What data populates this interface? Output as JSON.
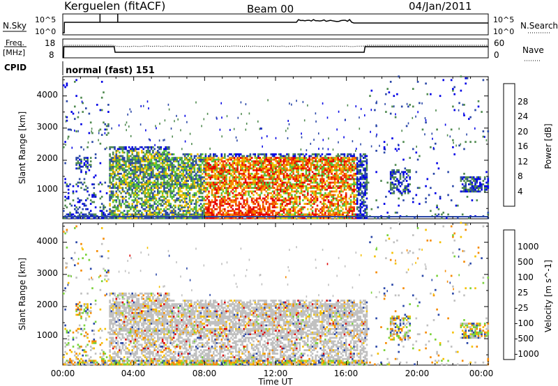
{
  "header": {
    "station": "Kerguelen (fitACF)",
    "beam": "Beam 00",
    "date": "04/Jan/2011"
  },
  "labels": {
    "nsky": "N.Sky",
    "nsearch": "N.Search",
    "freq_top": "Freq.",
    "freq_unit": "[MHz]",
    "nave": "Nave",
    "cpid": "CPID",
    "cpid_value": "normal (fast) 151"
  },
  "noise_panel": {
    "left_ticks": [
      "10^5",
      "10^0"
    ],
    "right_ticks": [
      "10^5",
      "10^0"
    ]
  },
  "freq_panel": {
    "left_ticks": [
      "18",
      "8"
    ],
    "right_ticks": [
      "60",
      "0"
    ]
  },
  "colors": {
    "power": [
      "#0000e6",
      "#2a47a8",
      "#4f8a4f",
      "#52c23b",
      "#f0c000",
      "#f58a00",
      "#f03c00",
      "#e60000"
    ],
    "velocity": [
      "#2a47a8",
      "#3a7a9a",
      "#2e8a3a",
      "#7ad23a",
      "#c0c0c0",
      "#f5c000",
      "#f58a00",
      "#f05000",
      "#e00000"
    ],
    "trace": "#000000"
  },
  "chart_data": [
    {
      "type": "heatmap",
      "title": "",
      "xlabel": "",
      "ylabel": "Slant Range [km]",
      "yticks": [
        "1000",
        "2000",
        "3000",
        "4000"
      ],
      "ylim": [
        180,
        4600
      ],
      "xlim": [
        0,
        24
      ],
      "colorbar": {
        "label": "Power [dB]",
        "ticks": [
          "4",
          "8",
          "12",
          "16",
          "20",
          "24",
          "28"
        ]
      },
      "features": [
        {
          "name": "ground scatter band",
          "time": [
            0,
            17
          ],
          "range": [
            180,
            300
          ],
          "power": "low"
        },
        {
          "name": "main echo region",
          "time": [
            2.5,
            17
          ],
          "range": [
            300,
            2300
          ],
          "power": "high near 12-16 UT"
        },
        {
          "name": "patch 1",
          "time": [
            18.5,
            19.5
          ],
          "range": [
            1000,
            1600
          ]
        },
        {
          "name": "patch 2",
          "time": [
            22.5,
            24
          ],
          "range": [
            1000,
            1500
          ]
        }
      ]
    },
    {
      "type": "heatmap",
      "title": "",
      "xlabel": "Time UT",
      "ylabel": "Slant Range [km]",
      "yticks": [
        "1000",
        "2000",
        "3000",
        "4000"
      ],
      "xticks": [
        "00:00",
        "04:00",
        "08:00",
        "12:00",
        "16:00",
        "20:00",
        "00:00"
      ],
      "ylim": [
        180,
        4600
      ],
      "xlim": [
        0,
        24
      ],
      "colorbar": {
        "label": "Velocity [m s^-1]",
        "ticks": [
          "1000",
          "500",
          "100",
          "25",
          "-25",
          "-100",
          "-500",
          "-1000"
        ]
      },
      "features": [
        {
          "name": "main echo region",
          "time": [
            2.5,
            17
          ],
          "range": [
            300,
            2300
          ],
          "velocity": "near zero"
        }
      ]
    }
  ]
}
